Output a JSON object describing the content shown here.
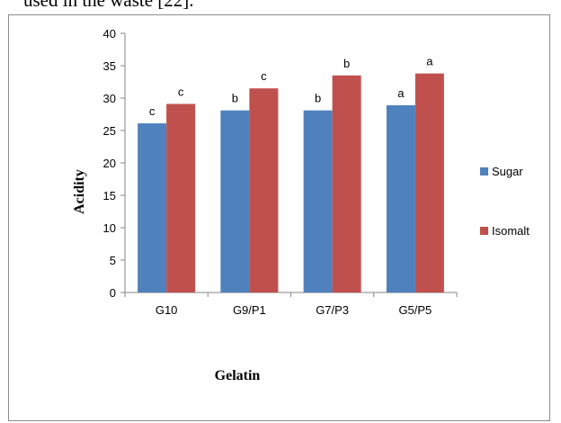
{
  "document": {
    "text_above": "used in the waste [22]."
  },
  "chart_data": {
    "type": "bar",
    "categories": [
      "G10",
      "G9/P1",
      "G7/P3",
      "G5/P5"
    ],
    "series": [
      {
        "name": "Sugar",
        "color": "#4f81bd",
        "values": [
          26.1,
          28.1,
          28.1,
          28.9
        ],
        "labels": [
          "c",
          "b",
          "b",
          "a"
        ]
      },
      {
        "name": "Isomalt",
        "color": "#c0504d",
        "values": [
          29.1,
          31.5,
          33.5,
          33.8
        ],
        "labels": [
          "c",
          "c",
          "b",
          "a"
        ]
      }
    ],
    "xlabel": "Gelatin",
    "ylabel": "Acidity",
    "ylim": [
      0,
      40
    ],
    "yticks": [
      0,
      5,
      10,
      15,
      20,
      25,
      30,
      35,
      40
    ],
    "grid": false,
    "legend_position": "right"
  }
}
